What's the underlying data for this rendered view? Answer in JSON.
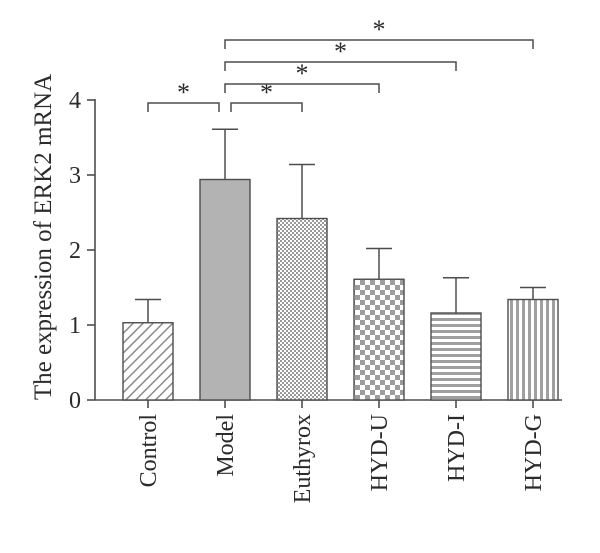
{
  "chart_data": {
    "type": "bar",
    "categories": [
      "Control",
      "Model",
      "Euthyrox",
      "HYD-U",
      "HYD-I",
      "HYD-G"
    ],
    "values": [
      1.03,
      2.94,
      2.42,
      1.61,
      1.16,
      1.34
    ],
    "errors": [
      0.31,
      0.67,
      0.72,
      0.41,
      0.47,
      0.16
    ],
    "patterns": [
      "diagonal-hatch",
      "solid",
      "dotted",
      "checkerboard",
      "horizontal-lines",
      "vertical-lines"
    ],
    "fills": [
      "#ffffff",
      "#b3b3b3",
      "#ffffff",
      "#ffffff",
      "#ffffff",
      "#ffffff"
    ],
    "ylabel": "The expression of ERK2 mRNA",
    "xlabel": "",
    "ylim": [
      0,
      4
    ],
    "yticks": [
      "0",
      "1",
      "2",
      "3",
      "4"
    ],
    "grid": false,
    "significance": [
      {
        "from": "Control",
        "to": "Model",
        "label": "*"
      },
      {
        "from": "Model",
        "to": "Euthyrox",
        "label": "*"
      },
      {
        "from": "Model",
        "to": "HYD-U",
        "label": "*"
      },
      {
        "from": "Model",
        "to": "HYD-I",
        "label": "*"
      },
      {
        "from": "Model",
        "to": "HYD-G",
        "label": "*"
      }
    ]
  },
  "colors": {
    "stroke": "#4d4d4d",
    "text": "#2b2b2b",
    "solid_bar": "#b3b3b3"
  }
}
